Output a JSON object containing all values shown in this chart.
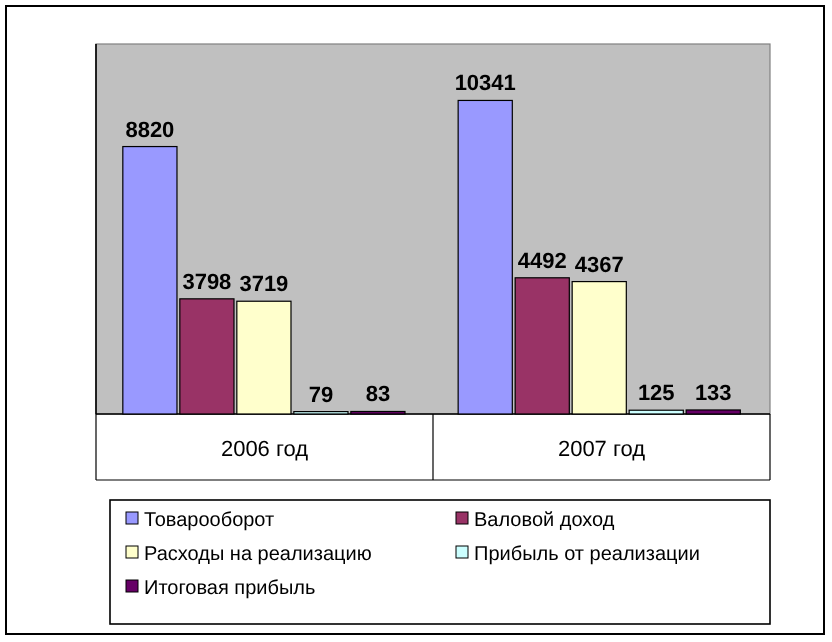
{
  "chart_data": {
    "type": "bar",
    "categories": [
      "2006 год",
      "2007 год"
    ],
    "series": [
      {
        "name": "Товарооборот",
        "color": "#9999ff",
        "values": [
          8820,
          10341
        ]
      },
      {
        "name": "Валовой доход",
        "color": "#993366",
        "values": [
          3798,
          4492
        ]
      },
      {
        "name": "Расходы на реализацию",
        "color": "#ffffcc",
        "values": [
          3719,
          4367
        ]
      },
      {
        "name": "Прибыль от реализации",
        "color": "#ccffff",
        "values": [
          79,
          125
        ]
      },
      {
        "name": "Итоговая прибыль",
        "color": "#660066",
        "values": [
          83,
          133
        ]
      }
    ],
    "data_labels": true,
    "legend": "bottom"
  }
}
